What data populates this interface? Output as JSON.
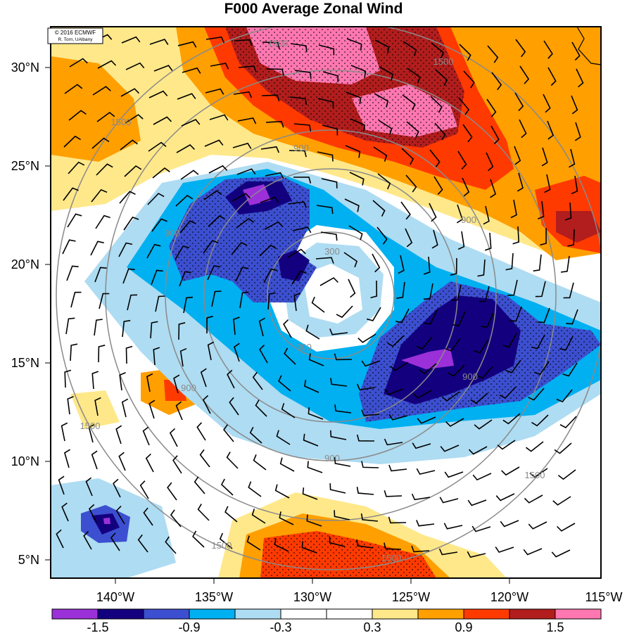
{
  "title": "F000 Average Zonal Wind",
  "credit": {
    "line1": "© 2016 ECMWF",
    "line2": "R. Torn, UAlbany"
  },
  "lat_labels": [
    "30°N",
    "25°N",
    "20°N",
    "15°N",
    "10°N",
    "5°N"
  ],
  "lon_labels": [
    "140°W",
    "135°W",
    "130°W",
    "125°W",
    "120°W",
    "115°W"
  ],
  "contour_labels": [
    "1500",
    "1500",
    "1500",
    "900",
    "900",
    "900",
    "900",
    "900",
    "300",
    "300",
    "1500",
    "1500",
    "1500",
    "1500",
    "900"
  ],
  "colorbar": {
    "colors": [
      "#9b30d9",
      "#13007f",
      "#3c4fd0",
      "#00b0f0",
      "#aedcf2",
      "#ffffff",
      "#ffffff",
      "#ffe88a",
      "#ff9f00",
      "#ff3a00",
      "#b21d1d",
      "#ff77b0"
    ],
    "labels": [
      "-1.5",
      "-0.9",
      "-0.3",
      "0.3",
      "0.9",
      "1.5"
    ]
  }
}
